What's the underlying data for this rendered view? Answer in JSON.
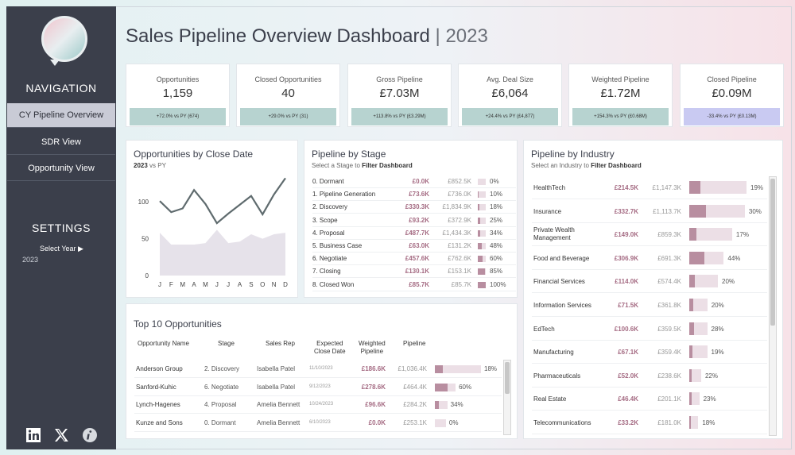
{
  "title": {
    "main": "Sales Pipeline Overview Dashboard",
    "sep": " | ",
    "year": "2023"
  },
  "sidebar": {
    "navigation_heading": "NAVIGATION",
    "items": [
      {
        "label": "CY Pipeline Overview"
      },
      {
        "label": "SDR View"
      },
      {
        "label": "Opportunity View"
      }
    ],
    "settings_heading": "SETTINGS",
    "select_year_label": "Select Year ▶",
    "year_value": "2023"
  },
  "kpis": [
    {
      "label": "Opportunities",
      "value": "1,159",
      "badge": "+72.0% vs PY (674)"
    },
    {
      "label": "Closed Opportunities",
      "value": "40",
      "badge": "+29.0% vs PY (31)"
    },
    {
      "label": "Gross Pipeline",
      "value": "£7.03M",
      "badge": "+113.8% vs PY (£3.29M)"
    },
    {
      "label": "Avg. Deal Size",
      "value": "£6,064",
      "badge": "+24.4% vs PY (£4,877)"
    },
    {
      "label": "Weighted Pipeline",
      "value": "£1.72M",
      "badge": "+154.3% vs PY (£0.68M)"
    },
    {
      "label": "Closed Pipeline",
      "value": "£0.09M",
      "badge": "-33.4% vs PY (£0.13M)"
    }
  ],
  "close_date": {
    "title": "Opportunities by Close Date",
    "sub_year": "2023",
    "sub_rest": " vs PY"
  },
  "chart_data": {
    "type": "line",
    "title": "Opportunities by Close Date",
    "categories": [
      "J",
      "F",
      "M",
      "A",
      "M",
      "J",
      "J",
      "A",
      "S",
      "O",
      "N",
      "D"
    ],
    "series": [
      {
        "name": "2023",
        "values": [
          101,
          86,
          91,
          116,
          97,
          71,
          84,
          96,
          108,
          83,
          110,
          132
        ]
      },
      {
        "name": "PY",
        "values": [
          58,
          42,
          42,
          42,
          44,
          62,
          44,
          46,
          56,
          50,
          56,
          58
        ]
      }
    ],
    "yticks": [
      "100",
      "50",
      "0"
    ],
    "ylim": [
      0,
      140
    ]
  },
  "stage": {
    "title": "Pipeline by Stage",
    "sub_pre": "Select a Stage to ",
    "sub_bold": "Filter Dashboard",
    "rows": [
      {
        "name": "0. Dormant",
        "cy": "£0.0K",
        "py": "£852.5K",
        "pct": "0%",
        "frac": 0.0
      },
      {
        "name": "1. Pipeline Generation",
        "cy": "£73.6K",
        "py": "£736.0K",
        "pct": "10%",
        "frac": 0.1
      },
      {
        "name": "2. Discovery",
        "cy": "£330.3K",
        "py": "£1,834.9K",
        "pct": "18%",
        "frac": 0.18
      },
      {
        "name": "3. Scope",
        "cy": "£93.2K",
        "py": "£372.9K",
        "pct": "25%",
        "frac": 0.25
      },
      {
        "name": "4. Proposal",
        "cy": "£487.7K",
        "py": "£1,434.3K",
        "pct": "34%",
        "frac": 0.34
      },
      {
        "name": "5. Business Case",
        "cy": "£63.0K",
        "py": "£131.2K",
        "pct": "48%",
        "frac": 0.48
      },
      {
        "name": "6. Negotiate",
        "cy": "£457.6K",
        "py": "£762.6K",
        "pct": "60%",
        "frac": 0.6
      },
      {
        "name": "7. Closing",
        "cy": "£130.1K",
        "py": "£153.1K",
        "pct": "85%",
        "frac": 0.85
      },
      {
        "name": "8. Closed Won",
        "cy": "£85.7K",
        "py": "£85.7K",
        "pct": "100%",
        "frac": 1.0
      }
    ]
  },
  "industry": {
    "title": "Pipeline by Industry",
    "sub_pre": "Select an Industry to ",
    "sub_bold": "Filter Dashboard",
    "rows": [
      {
        "name": "HealthTech",
        "cy": "£214.5K",
        "py": "£1,147.3K",
        "pct": "19%",
        "frac": 0.19
      },
      {
        "name": "Insurance",
        "cy": "£332.7K",
        "py": "£1,113.7K",
        "pct": "30%",
        "frac": 0.3
      },
      {
        "name": "Private Wealth Management",
        "cy": "£149.0K",
        "py": "£859.3K",
        "pct": "17%",
        "frac": 0.17
      },
      {
        "name": "Food and Beverage",
        "cy": "£306.9K",
        "py": "£691.3K",
        "pct": "44%",
        "frac": 0.44
      },
      {
        "name": "Financial Services",
        "cy": "£114.0K",
        "py": "£574.4K",
        "pct": "20%",
        "frac": 0.2
      },
      {
        "name": "Information Services",
        "cy": "£71.5K",
        "py": "£361.8K",
        "pct": "20%",
        "frac": 0.2
      },
      {
        "name": "EdTech",
        "cy": "£100.6K",
        "py": "£359.5K",
        "pct": "28%",
        "frac": 0.28
      },
      {
        "name": "Manufacturing",
        "cy": "£67.1K",
        "py": "£359.4K",
        "pct": "19%",
        "frac": 0.19
      },
      {
        "name": "Pharmaceuticals",
        "cy": "£52.0K",
        "py": "£238.6K",
        "pct": "22%",
        "frac": 0.22
      },
      {
        "name": "Real Estate",
        "cy": "£46.4K",
        "py": "£201.1K",
        "pct": "23%",
        "frac": 0.23
      },
      {
        "name": "Telecommunications",
        "cy": "£33.2K",
        "py": "£181.0K",
        "pct": "18%",
        "frac": 0.18
      }
    ]
  },
  "top10": {
    "title": "Top 10 Opportunities",
    "headers": {
      "name": "Opportunity Name",
      "stage": "Stage",
      "rep": "Sales Rep",
      "close": "Expected\nClose Date",
      "weighted": "Weighted\nPipeline",
      "pipeline": "Pipeline"
    },
    "rows": [
      {
        "name": "Anderson Group",
        "stage": "2. Discovery",
        "rep": "Isabella Patel",
        "date": "11/10/2023",
        "weighted": "£186.6K",
        "pipeline": "£1,036.4K",
        "pct": "18%",
        "frac": 0.18,
        "scale": 1.0
      },
      {
        "name": "Sanford-Kuhic",
        "stage": "6. Negotiate",
        "rep": "Isabella Patel",
        "date": "9/12/2023",
        "weighted": "£278.6K",
        "pipeline": "£464.4K",
        "pct": "60%",
        "frac": 0.6,
        "scale": 0.45
      },
      {
        "name": "Lynch-Hagenes",
        "stage": "4. Proposal",
        "rep": "Amelia Bennett",
        "date": "10/24/2023",
        "weighted": "£96.6K",
        "pipeline": "£284.2K",
        "pct": "34%",
        "frac": 0.34,
        "scale": 0.27
      },
      {
        "name": "Kunze and Sons",
        "stage": "0. Dormant",
        "rep": "Amelia Bennett",
        "date": "6/10/2023",
        "weighted": "£0.0K",
        "pipeline": "£253.1K",
        "pct": "0%",
        "frac": 0.0,
        "scale": 0.24
      }
    ]
  },
  "colors": {
    "sidebar": "#3b3f4b",
    "accent": "#a46a82",
    "bar": "#b88ea0",
    "bar_bg": "#ecdfe6",
    "line": "#5f6b6e",
    "area": "#e6e2ea"
  }
}
